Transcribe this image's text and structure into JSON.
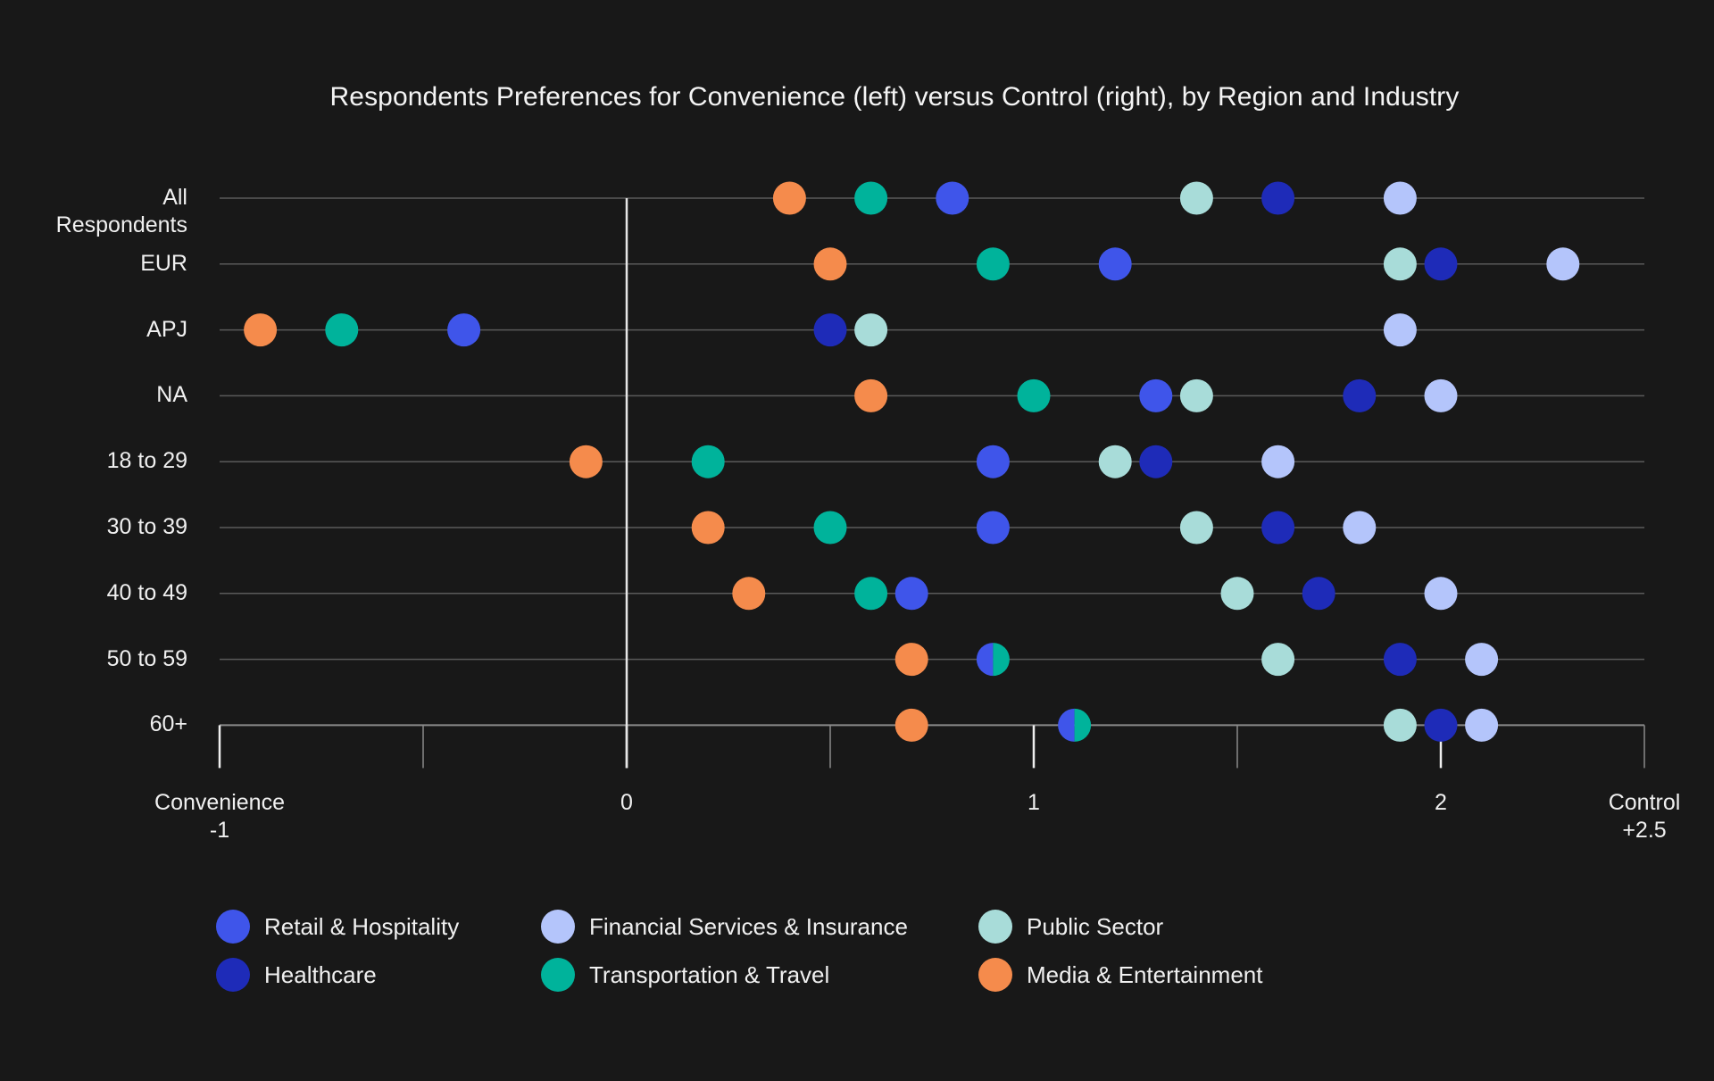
{
  "chart_data": {
    "type": "scatter",
    "subtype": "dot-plot",
    "title": "Respondents Preferences for Convenience (left) versus Control (right), by Region and Industry",
    "xlabel_left": "Convenience",
    "xlabel_right": "Control",
    "xlim": [
      -1,
      2.5
    ],
    "x_ticks": [
      {
        "value": -1,
        "label": "-1",
        "major": true
      },
      {
        "value": -0.5,
        "label": "",
        "major": false
      },
      {
        "value": 0,
        "label": "0",
        "major": true
      },
      {
        "value": 0.5,
        "label": "",
        "major": false
      },
      {
        "value": 1,
        "label": "1",
        "major": true
      },
      {
        "value": 1.5,
        "label": "",
        "major": false
      },
      {
        "value": 2,
        "label": "2",
        "major": true
      },
      {
        "value": 2.5,
        "label": "+2.5",
        "major": false
      }
    ],
    "x_tick_labels": {
      "left_title": "Convenience",
      "left_value": "-1",
      "zero": "0",
      "one": "1",
      "two": "2",
      "right_title": "Control",
      "right_value": "+2.5"
    },
    "categories": [
      "All Respondents",
      "EUR",
      "APJ",
      "NA",
      "18 to 29",
      "30 to 39",
      "40 to 49",
      "50 to 59",
      "60+"
    ],
    "category_lines": [
      [
        "All",
        "Respondents"
      ],
      [
        "EUR"
      ],
      [
        "APJ"
      ],
      [
        "NA"
      ],
      [
        "18 to 29"
      ],
      [
        "30 to 39"
      ],
      [
        "40 to 49"
      ],
      [
        "50 to 59"
      ],
      [
        "60+"
      ]
    ],
    "series": [
      {
        "name": "Retail & Hospitality",
        "key": "retail",
        "color": "#3F55EA",
        "values": [
          0.8,
          1.2,
          -0.4,
          1.3,
          0.9,
          0.9,
          0.7,
          0.9,
          1.1
        ]
      },
      {
        "name": "Healthcare",
        "key": "healthcare",
        "color": "#1E2BB8",
        "values": [
          1.6,
          2.0,
          0.5,
          1.8,
          1.3,
          1.6,
          1.7,
          1.9,
          2.0
        ]
      },
      {
        "name": "Financial Services & Insurance",
        "key": "financial",
        "color": "#B4C5FB",
        "values": [
          1.9,
          2.3,
          1.9,
          2.0,
          1.6,
          1.8,
          2.0,
          2.1,
          2.1
        ]
      },
      {
        "name": "Transportation & Travel",
        "key": "transport",
        "color": "#00B39B",
        "values": [
          0.6,
          0.9,
          -0.7,
          1.0,
          0.2,
          0.5,
          0.6,
          0.9,
          1.1
        ]
      },
      {
        "name": "Public Sector",
        "key": "public",
        "color": "#A8DCD9",
        "values": [
          1.4,
          1.9,
          0.6,
          1.4,
          1.2,
          1.4,
          1.5,
          1.6,
          1.9
        ]
      },
      {
        "name": "Media & Entertainment",
        "key": "media",
        "color": "#F58B4C",
        "values": [
          0.4,
          0.5,
          -0.9,
          0.6,
          -0.1,
          0.2,
          0.3,
          0.7,
          0.7
        ]
      }
    ],
    "overlaps_note": "Retail & Hospitality and Transportation & Travel share the same value in '50 to 59' (0.9) and '60+' (1.1), drawn as a half/half dot",
    "legend": {
      "placement": "bottom",
      "columns": [
        [
          "Retail & Hospitality",
          "Healthcare"
        ],
        [
          "Financial Services & Insurance",
          "Transportation & Travel"
        ],
        [
          "Public Sector",
          "Media & Entertainment"
        ]
      ]
    },
    "grid": true
  },
  "legend_items": [
    {
      "label": "Retail & Hospitality",
      "color": "#3F55EA"
    },
    {
      "label": "Healthcare",
      "color": "#1E2BB8"
    },
    {
      "label": "Financial Services & Insurance",
      "color": "#B4C5FB"
    },
    {
      "label": "Transportation & Travel",
      "color": "#00B39B"
    },
    {
      "label": "Public Sector",
      "color": "#A8DCD9"
    },
    {
      "label": "Media & Entertainment",
      "color": "#F58B4C"
    }
  ],
  "theme": {
    "background": "#181818",
    "gridline": "#5a5a5a",
    "zero_line": "#e6e6e6",
    "text": "#f0f0f0"
  }
}
